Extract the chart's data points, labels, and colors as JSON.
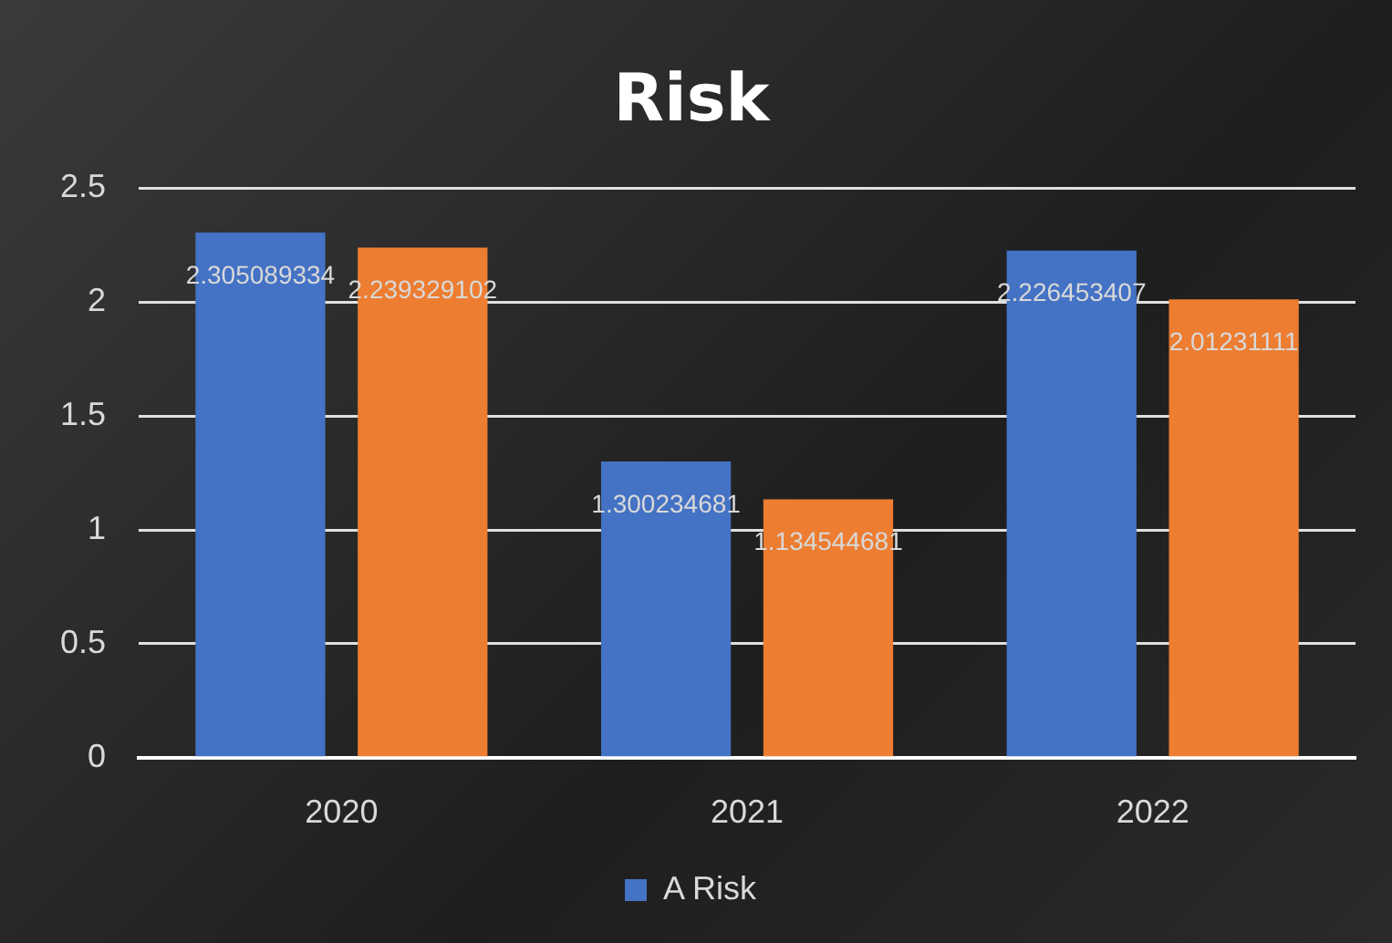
{
  "chart_data": {
    "type": "bar",
    "title": "Risk",
    "categories": [
      "2020",
      "2021",
      "2022"
    ],
    "series": [
      {
        "name": "A Risk",
        "color": "#4472c4",
        "values": [
          2.305089334,
          1.300234681,
          2.226453407
        ]
      },
      {
        "color": "#ed7d31",
        "values": [
          2.239329102,
          1.134544681,
          2.01231111
        ]
      }
    ],
    "ylim": [
      0,
      2.5
    ],
    "yticks": [
      0,
      0.5,
      1,
      1.5,
      2,
      2.5
    ],
    "grid": "y",
    "legend": "bottom",
    "data_labels": true
  }
}
